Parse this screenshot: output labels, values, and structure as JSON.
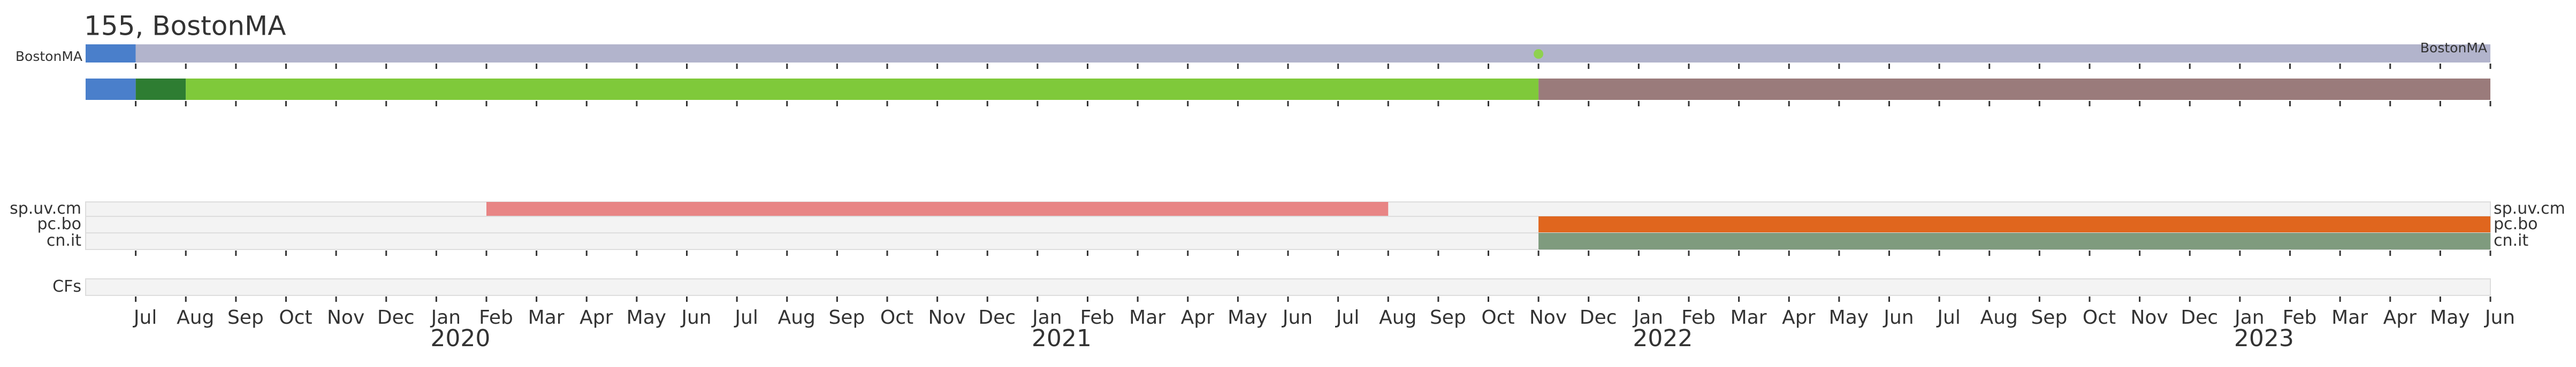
{
  "chart_data": {
    "type": "timeline",
    "title": "155, BostonMA",
    "xlim": [
      "2019-06",
      "2023-06"
    ],
    "xticks": [
      {
        "value": "2019-07",
        "label": "Jul"
      },
      {
        "value": "2019-08",
        "label": "Aug"
      },
      {
        "value": "2019-09",
        "label": "Sep"
      },
      {
        "value": "2019-10",
        "label": "Oct"
      },
      {
        "value": "2019-11",
        "label": "Nov"
      },
      {
        "value": "2019-12",
        "label": "Dec"
      },
      {
        "value": "2020-01",
        "label": "Jan"
      },
      {
        "value": "2020-02",
        "label": "Feb"
      },
      {
        "value": "2020-03",
        "label": "Mar"
      },
      {
        "value": "2020-04",
        "label": "Apr"
      },
      {
        "value": "2020-05",
        "label": "May"
      },
      {
        "value": "2020-06",
        "label": "Jun"
      },
      {
        "value": "2020-07",
        "label": "Jul"
      },
      {
        "value": "2020-08",
        "label": "Aug"
      },
      {
        "value": "2020-09",
        "label": "Sep"
      },
      {
        "value": "2020-10",
        "label": "Oct"
      },
      {
        "value": "2020-11",
        "label": "Nov"
      },
      {
        "value": "2020-12",
        "label": "Dec"
      },
      {
        "value": "2021-01",
        "label": "Jan"
      },
      {
        "value": "2021-02",
        "label": "Feb"
      },
      {
        "value": "2021-03",
        "label": "Mar"
      },
      {
        "value": "2021-04",
        "label": "Apr"
      },
      {
        "value": "2021-05",
        "label": "May"
      },
      {
        "value": "2021-06",
        "label": "Jun"
      },
      {
        "value": "2021-07",
        "label": "Jul"
      },
      {
        "value": "2021-08",
        "label": "Aug"
      },
      {
        "value": "2021-09",
        "label": "Sep"
      },
      {
        "value": "2021-10",
        "label": "Oct"
      },
      {
        "value": "2021-11",
        "label": "Nov"
      },
      {
        "value": "2021-12",
        "label": "Dec"
      },
      {
        "value": "2022-01",
        "label": "Jan"
      },
      {
        "value": "2022-02",
        "label": "Feb"
      },
      {
        "value": "2022-03",
        "label": "Mar"
      },
      {
        "value": "2022-04",
        "label": "Apr"
      },
      {
        "value": "2022-05",
        "label": "May"
      },
      {
        "value": "2022-06",
        "label": "Jun"
      },
      {
        "value": "2022-07",
        "label": "Jul"
      },
      {
        "value": "2022-08",
        "label": "Aug"
      },
      {
        "value": "2022-09",
        "label": "Sep"
      },
      {
        "value": "2022-10",
        "label": "Oct"
      },
      {
        "value": "2022-11",
        "label": "Nov"
      },
      {
        "value": "2022-12",
        "label": "Dec"
      },
      {
        "value": "2023-01",
        "label": "Jan"
      },
      {
        "value": "2023-02",
        "label": "Feb"
      },
      {
        "value": "2023-03",
        "label": "Mar"
      },
      {
        "value": "2023-04",
        "label": "Apr"
      },
      {
        "value": "2023-05",
        "label": "May"
      },
      {
        "value": "2023-06",
        "label": "Jun"
      }
    ],
    "year_ticks": [
      {
        "value": "2020-01",
        "label": "2020"
      },
      {
        "value": "2021-01",
        "label": "2021"
      },
      {
        "value": "2022-01",
        "label": "2022"
      },
      {
        "value": "2023-01",
        "label": "2023"
      }
    ],
    "rows": [
      {
        "name": "BostonMA",
        "segments": [
          {
            "start": "2019-06",
            "end": "2019-07",
            "color": "#4a7fcb"
          },
          {
            "start": "2019-07",
            "end": "2023-06",
            "color": "#b2b4cc"
          }
        ],
        "markers": [
          {
            "at": "2021-11",
            "color": "#8fd14f"
          }
        ]
      },
      {
        "segments": [
          {
            "start": "2019-06",
            "end": "2019-07",
            "color": "#4a7fcb"
          },
          {
            "start": "2019-07",
            "end": "2019-08",
            "color": "#2e7d32"
          },
          {
            "start": "2019-08",
            "end": "2021-02",
            "color": "#7fc93a"
          },
          {
            "start": "2021-02",
            "end": "2021-02",
            "color": "#9a7b7b"
          },
          {
            "start": "2021-02",
            "end": "2021-11",
            "color": "#7fc93a"
          },
          {
            "start": "2021-11",
            "end": "2023-06",
            "color": "#9a7b7b"
          }
        ]
      },
      {
        "name": "sp.uv.cm",
        "segments": [
          {
            "start": "2020-02",
            "end": "2021-08",
            "color": "#e88585"
          }
        ]
      },
      {
        "name": "pc.bo",
        "segments": [
          {
            "start": "2021-11",
            "end": "2023-06",
            "color": "#e0661e"
          }
        ]
      },
      {
        "name": "cn.it",
        "segments": [
          {
            "start": "2021-11",
            "end": "2023-06",
            "color": "#7f9b7e"
          }
        ]
      },
      {
        "name": "CFs",
        "segments": []
      }
    ]
  }
}
